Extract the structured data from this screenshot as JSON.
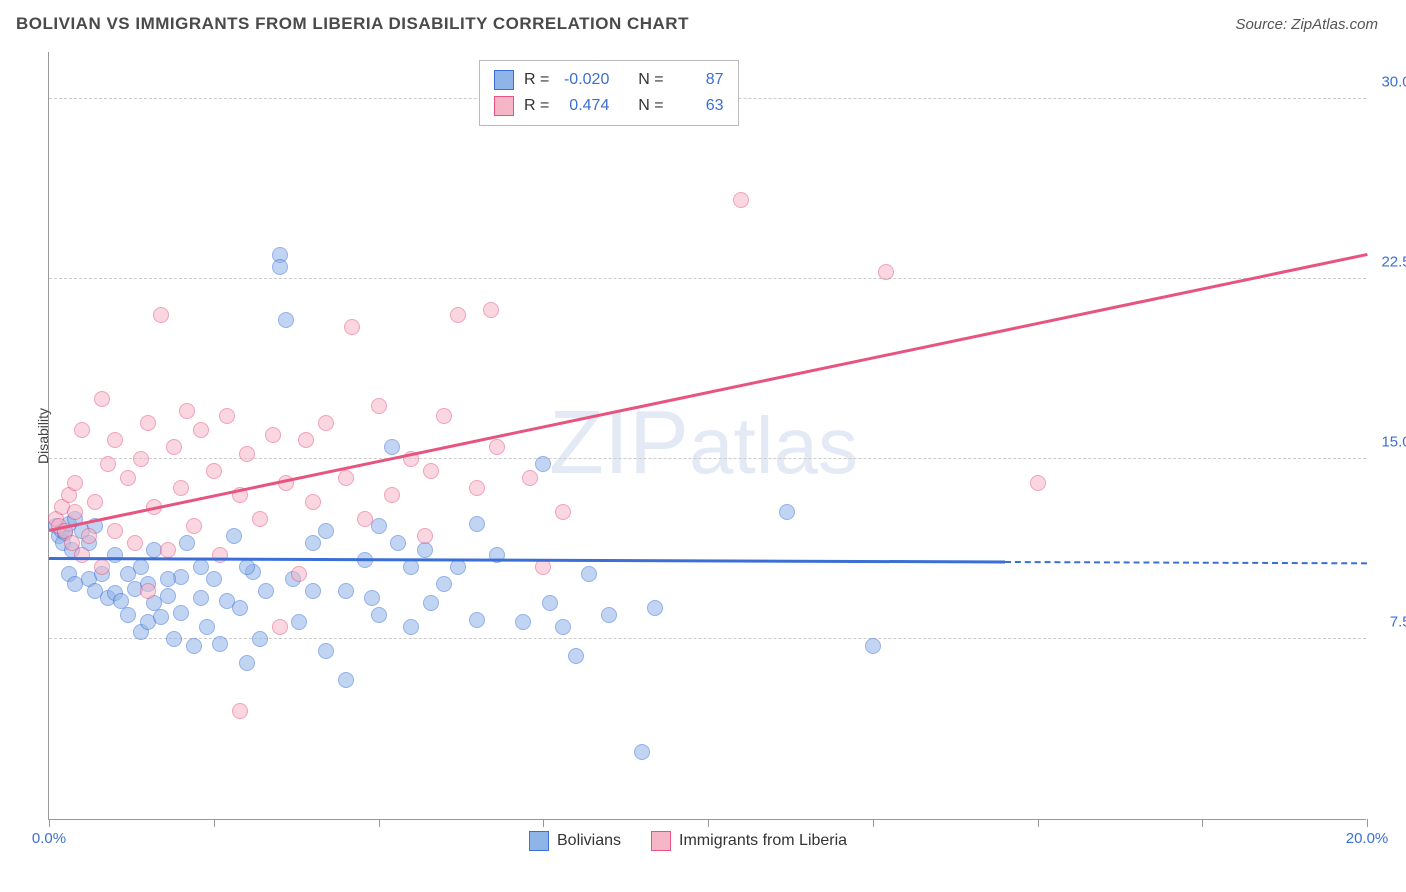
{
  "title": "BOLIVIAN VS IMMIGRANTS FROM LIBERIA DISABILITY CORRELATION CHART",
  "source": "Source: ZipAtlas.com",
  "watermark": "ZIPatlas",
  "chart": {
    "type": "scatter",
    "ylabel": "Disability",
    "xlim": [
      0,
      20
    ],
    "ylim": [
      0,
      32
    ],
    "xtick_positions": [
      0,
      2.5,
      5.0,
      7.5,
      10.0,
      12.5,
      15.0,
      17.5,
      20.0
    ],
    "xtick_labels_shown": {
      "0": "0.0%",
      "20": "20.0%"
    },
    "ytick_positions": [
      7.5,
      15.0,
      22.5,
      30.0
    ],
    "ytick_labels": [
      "7.5%",
      "15.0%",
      "22.5%",
      "30.0%"
    ],
    "background_color": "#ffffff",
    "grid_color": "#cccccc",
    "axis_color": "#999999",
    "tick_label_color": "#3b6fd6",
    "marker_radius": 8,
    "marker_opacity": 0.55,
    "series": [
      {
        "name": "Bolivians",
        "label": "Bolivians",
        "fill": "#8fb4e8",
        "stroke": "#3b6fd6",
        "R": "-0.020",
        "N": "87",
        "trend": {
          "x1": 0,
          "y1": 10.8,
          "x2": 20,
          "y2": 10.6,
          "solid_until_x": 14.5
        },
        "points": [
          [
            0.1,
            12.2
          ],
          [
            0.15,
            11.8
          ],
          [
            0.2,
            12.0
          ],
          [
            0.22,
            11.5
          ],
          [
            0.25,
            11.9
          ],
          [
            0.3,
            12.3
          ],
          [
            0.35,
            11.2
          ],
          [
            0.4,
            12.5
          ],
          [
            0.3,
            10.2
          ],
          [
            0.4,
            9.8
          ],
          [
            0.6,
            10.0
          ],
          [
            0.7,
            9.5
          ],
          [
            0.8,
            10.2
          ],
          [
            0.9,
            9.2
          ],
          [
            1.0,
            9.4
          ],
          [
            1.1,
            9.1
          ],
          [
            1.2,
            8.5
          ],
          [
            1.3,
            9.6
          ],
          [
            1.4,
            7.8
          ],
          [
            1.5,
            9.8
          ],
          [
            1.5,
            8.2
          ],
          [
            1.6,
            9.0
          ],
          [
            1.7,
            8.4
          ],
          [
            1.8,
            9.3
          ],
          [
            1.9,
            7.5
          ],
          [
            2.0,
            10.1
          ],
          [
            2.0,
            8.6
          ],
          [
            2.2,
            7.2
          ],
          [
            2.3,
            10.5
          ],
          [
            2.4,
            8.0
          ],
          [
            2.6,
            7.3
          ],
          [
            2.7,
            9.1
          ],
          [
            2.9,
            8.8
          ],
          [
            3.0,
            6.5
          ],
          [
            3.1,
            10.3
          ],
          [
            3.2,
            7.5
          ],
          [
            3.5,
            23.5
          ],
          [
            3.5,
            23.0
          ],
          [
            3.6,
            20.8
          ],
          [
            3.8,
            8.2
          ],
          [
            4.0,
            9.5
          ],
          [
            4.2,
            7.0
          ],
          [
            4.2,
            12.0
          ],
          [
            4.5,
            5.8
          ],
          [
            4.8,
            10.8
          ],
          [
            4.9,
            9.2
          ],
          [
            5.0,
            8.5
          ],
          [
            5.2,
            15.5
          ],
          [
            5.3,
            11.5
          ],
          [
            5.5,
            8.0
          ],
          [
            5.7,
            11.2
          ],
          [
            5.8,
            9.0
          ],
          [
            6.2,
            10.5
          ],
          [
            6.5,
            8.3
          ],
          [
            6.8,
            11.0
          ],
          [
            7.2,
            8.2
          ],
          [
            7.5,
            14.8
          ],
          [
            7.6,
            9.0
          ],
          [
            7.8,
            8.0
          ],
          [
            8.0,
            6.8
          ],
          [
            8.2,
            10.2
          ],
          [
            8.5,
            8.5
          ],
          [
            9.0,
            2.8
          ],
          [
            9.2,
            8.8
          ],
          [
            11.2,
            12.8
          ],
          [
            12.5,
            7.2
          ],
          [
            0.5,
            12.0
          ],
          [
            0.6,
            11.5
          ],
          [
            0.7,
            12.2
          ],
          [
            1.0,
            11.0
          ],
          [
            1.2,
            10.2
          ],
          [
            1.4,
            10.5
          ],
          [
            1.6,
            11.2
          ],
          [
            1.8,
            10.0
          ],
          [
            2.1,
            11.5
          ],
          [
            2.3,
            9.2
          ],
          [
            2.5,
            10.0
          ],
          [
            2.8,
            11.8
          ],
          [
            3.0,
            10.5
          ],
          [
            3.3,
            9.5
          ],
          [
            3.7,
            10.0
          ],
          [
            4.0,
            11.5
          ],
          [
            4.5,
            9.5
          ],
          [
            5.0,
            12.2
          ],
          [
            5.5,
            10.5
          ],
          [
            6.0,
            9.8
          ],
          [
            6.5,
            12.3
          ]
        ]
      },
      {
        "name": "Immigrants from Liberia",
        "label": "Immigrants from Liberia",
        "fill": "#f5b6c8",
        "stroke": "#e75480",
        "R": "0.474",
        "N": "63",
        "trend": {
          "x1": 0,
          "y1": 12.0,
          "x2": 20,
          "y2": 23.5,
          "solid_until_x": 20
        },
        "points": [
          [
            0.1,
            12.5
          ],
          [
            0.15,
            12.2
          ],
          [
            0.2,
            13.0
          ],
          [
            0.25,
            12.0
          ],
          [
            0.3,
            13.5
          ],
          [
            0.35,
            11.5
          ],
          [
            0.4,
            12.8
          ],
          [
            0.4,
            14.0
          ],
          [
            0.5,
            11.0
          ],
          [
            0.5,
            16.2
          ],
          [
            0.6,
            11.8
          ],
          [
            0.7,
            13.2
          ],
          [
            0.8,
            17.5
          ],
          [
            0.9,
            14.8
          ],
          [
            1.0,
            12.0
          ],
          [
            1.0,
            15.8
          ],
          [
            1.2,
            14.2
          ],
          [
            1.3,
            11.5
          ],
          [
            1.4,
            15.0
          ],
          [
            1.5,
            16.5
          ],
          [
            1.6,
            13.0
          ],
          [
            1.7,
            21.0
          ],
          [
            1.8,
            11.2
          ],
          [
            1.9,
            15.5
          ],
          [
            2.0,
            13.8
          ],
          [
            2.1,
            17.0
          ],
          [
            2.2,
            12.2
          ],
          [
            2.3,
            16.2
          ],
          [
            2.5,
            14.5
          ],
          [
            2.6,
            11.0
          ],
          [
            2.7,
            16.8
          ],
          [
            2.9,
            13.5
          ],
          [
            2.9,
            4.5
          ],
          [
            3.0,
            15.2
          ],
          [
            3.2,
            12.5
          ],
          [
            3.4,
            16.0
          ],
          [
            3.6,
            14.0
          ],
          [
            3.8,
            10.2
          ],
          [
            3.9,
            15.8
          ],
          [
            4.0,
            13.2
          ],
          [
            4.2,
            16.5
          ],
          [
            4.5,
            14.2
          ],
          [
            4.6,
            20.5
          ],
          [
            4.8,
            12.5
          ],
          [
            5.0,
            17.2
          ],
          [
            5.2,
            13.5
          ],
          [
            5.5,
            15.0
          ],
          [
            5.7,
            11.8
          ],
          [
            5.8,
            14.5
          ],
          [
            6.0,
            16.8
          ],
          [
            6.2,
            21.0
          ],
          [
            6.5,
            13.8
          ],
          [
            6.7,
            21.2
          ],
          [
            6.8,
            15.5
          ],
          [
            7.3,
            14.2
          ],
          [
            7.5,
            10.5
          ],
          [
            7.8,
            12.8
          ],
          [
            10.5,
            25.8
          ],
          [
            12.7,
            22.8
          ],
          [
            15.0,
            14.0
          ],
          [
            3.5,
            8.0
          ],
          [
            0.8,
            10.5
          ],
          [
            1.5,
            9.5
          ]
        ]
      }
    ]
  },
  "bottom_legend": {
    "items": [
      "Bolivians",
      "Immigrants from Liberia"
    ]
  },
  "stats_labels": {
    "R": "R",
    "N": "N",
    "eq": "="
  }
}
